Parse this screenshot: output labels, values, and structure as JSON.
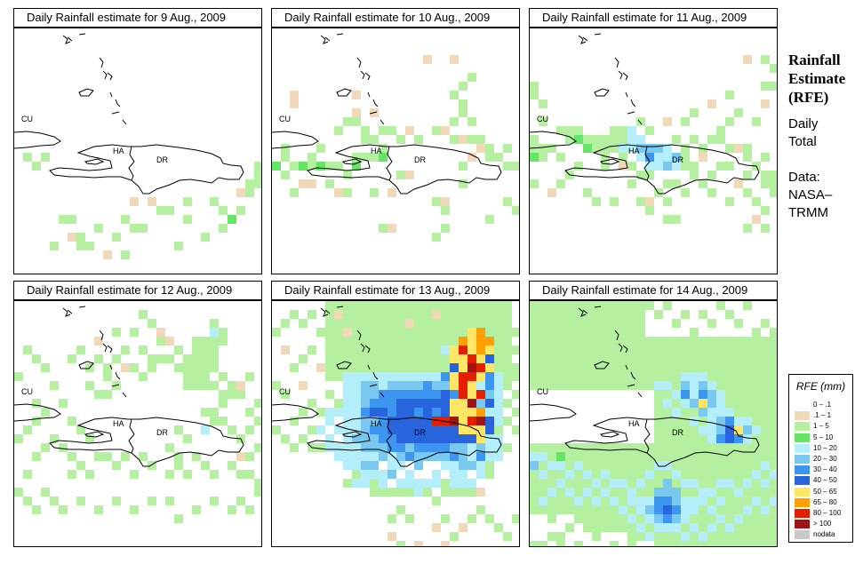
{
  "panels": [
    {
      "title": "Daily Rainfall estimate for  9 Aug., 2009",
      "date": "9 Aug., 2009"
    },
    {
      "title": "Daily Rainfall estimate for  10 Aug., 2009",
      "date": "10 Aug., 2009"
    },
    {
      "title": "Daily Rainfall estimate for  11 Aug., 2009",
      "date": "11 Aug., 2009"
    },
    {
      "title": "Daily Rainfall estimate for  12 Aug., 2009",
      "date": "12 Aug., 2009"
    },
    {
      "title": "Daily Rainfall estimate for  13 Aug., 2009",
      "date": "13 Aug., 2009"
    },
    {
      "title": "Daily Rainfall estimate for  14 Aug., 2009",
      "date": "14 Aug., 2009"
    }
  ],
  "map_labels": {
    "cuba": "CU",
    "haiti": "HA",
    "dominican_republic": "DR"
  },
  "sidebar": {
    "title_lines": [
      "Rainfall",
      "Estimate",
      "(RFE)"
    ],
    "daily_lines": [
      "Daily",
      "Total"
    ],
    "data_lines": [
      "Data:",
      "NASA–",
      "TRMM"
    ]
  },
  "legend": {
    "title": "RFE (mm)",
    "items": [
      {
        "label": "0 – .1",
        "color": "#ffffff"
      },
      {
        "label": ".1 – 1",
        "color": "#f0d8b8"
      },
      {
        "label": "1 – 5",
        "color": "#b4f0a0"
      },
      {
        "label": "5 – 10",
        "color": "#64e664"
      },
      {
        "label": "10 – 20",
        "color": "#b4eefa"
      },
      {
        "label": "20 – 30",
        "color": "#78c8f0"
      },
      {
        "label": "30 – 40",
        "color": "#3c96f0"
      },
      {
        "label": "40 – 50",
        "color": "#2864dc"
      },
      {
        "label": "50 – 65",
        "color": "#ffe664"
      },
      {
        "label": "65 – 80",
        "color": "#ffa000"
      },
      {
        "label": "80 – 100",
        "color": "#e61e00"
      },
      {
        "label": "> 100",
        "color": "#a01414"
      },
      {
        "label": "nodata",
        "color": "#c8c8c8"
      }
    ]
  }
}
